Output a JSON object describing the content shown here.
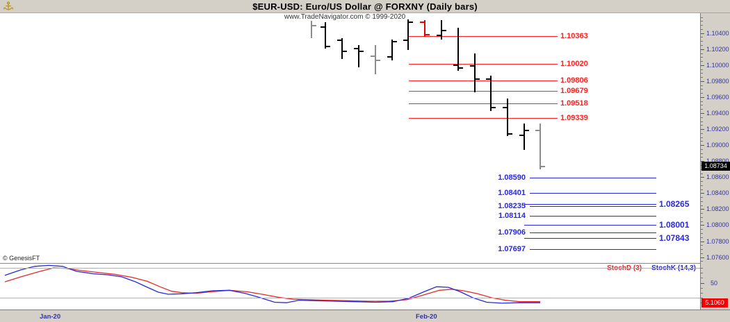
{
  "header": {
    "title": "$EUR-USD:  Euro/US Dollar @ FORXNY  (Daily bars)",
    "subtitle": "www.TradeNavigator.com © 1999-2020",
    "logo_icon": "anchor-icon"
  },
  "watermark": "© GenesisFT",
  "colors": {
    "background": "#d4d0c8",
    "panel": "#ffffff",
    "resistance": "#ff2020",
    "support": "#2828e0",
    "axis_text": "#333399",
    "bar_black": "#000000",
    "bar_gray": "#8c8c8c",
    "bar_red": "#e80000",
    "stoch_d": "#e62828",
    "stoch_k": "#2828e0",
    "gridline": "#b0b0b0",
    "last_price_box_bg": "#000000",
    "stoch_box_bg": "#f40000"
  },
  "footer": {
    "x_labels": [
      {
        "text": "Jan-20",
        "x": 57
      },
      {
        "text": "Feb-20",
        "x": 598
      }
    ]
  },
  "chart_data": [
    {
      "type": "ohlc-bar",
      "title": "$EUR-USD: Euro/US Dollar @ FORXNY (Daily bars)",
      "xlabel": "",
      "ylabel": "",
      "legend_position": "none",
      "grid": false,
      "y_axis": {
        "side": "right",
        "min": 1.07527,
        "max": 1.10649,
        "tick_labels": [
          "1.10400",
          "1.10200",
          "1.10000",
          "1.09800",
          "1.09600",
          "1.09400",
          "1.09200",
          "1.09000",
          "1.08800",
          "1.08600",
          "1.08400",
          "1.08200",
          "1.08000",
          "1.07800",
          "1.07600"
        ],
        "minor_step": 0.0005
      },
      "x_axis": {
        "labels": [
          "Jan-20",
          "Feb-20"
        ]
      },
      "last_price_label": "1.08734",
      "bars": [
        {
          "x": 448,
          "color": "gray",
          "high": 1.10555,
          "low": 1.1034,
          "open": null,
          "close": 1.10495
        },
        {
          "x": 468,
          "color": "black",
          "high": 1.10537,
          "low": 1.10211,
          "open": 1.10477,
          "close": 1.10237
        },
        {
          "x": 492,
          "color": "black",
          "high": 1.1034,
          "low": 1.10083,
          "open": 1.10314,
          "close": 1.1017
        },
        {
          "x": 516,
          "color": "black",
          "high": 1.10254,
          "low": 1.0998,
          "open": 1.10211,
          "close": 1.1017
        },
        {
          "x": 540,
          "color": "gray",
          "high": 1.10254,
          "low": 1.0989,
          "open": 1.1011,
          "close": 1.1006
        },
        {
          "x": 564,
          "color": "black",
          "high": 1.10323,
          "low": 1.10066,
          "open": 1.101,
          "close": 1.10297
        },
        {
          "x": 587,
          "color": "black",
          "high": 1.10571,
          "low": 1.10186,
          "open": 1.10314,
          "close": 1.10537
        },
        {
          "x": 611,
          "color": "red",
          "high": 1.10563,
          "low": 1.10357,
          "open": 1.1054,
          "close": 1.1038
        },
        {
          "x": 635,
          "color": "black",
          "high": 1.10563,
          "low": 1.10323,
          "open": 1.1037,
          "close": 1.10434
        },
        {
          "x": 659,
          "color": "black",
          "high": 1.10469,
          "low": 1.09929,
          "open": 1.09997,
          "close": 1.09963
        },
        {
          "x": 683,
          "color": "black",
          "high": 1.10143,
          "low": 1.09654,
          "open": 1.09988,
          "close": 1.09826
        },
        {
          "x": 706,
          "color": "black",
          "high": 1.09869,
          "low": 1.09423,
          "open": 1.09826,
          "close": 1.09466
        },
        {
          "x": 730,
          "color": "black",
          "high": 1.09586,
          "low": 1.09114,
          "open": 1.09466,
          "close": 1.0914
        },
        {
          "x": 754,
          "color": "black",
          "high": 1.09269,
          "low": 1.08943,
          "open": 1.09123,
          "close": 1.09183
        },
        {
          "x": 777,
          "color": "gray",
          "high": 1.09269,
          "low": 1.08694,
          "open": 1.09183,
          "close": 1.08734
        }
      ],
      "resistance_lines": {
        "color_key": "resistance",
        "labels": [
          "1.10363",
          "1.10020",
          "1.09806",
          "1.09679",
          "1.09518",
          "1.09339"
        ],
        "x_start": 588,
        "x_end": 802,
        "label_x": 806
      },
      "support_lines": {
        "color_key": "support",
        "left_labeled": {
          "labels": [
            "1.08590",
            "1.08401",
            "1.08235",
            "1.08114",
            "1.07906",
            "1.07697"
          ],
          "x_start": 762,
          "x_end": 944
        },
        "right_labeled": {
          "labels": [
            "1.08265",
            "1.08001",
            "1.07843"
          ],
          "x_start": 754,
          "x_end": 944,
          "label_x": 948
        }
      }
    },
    {
      "type": "line",
      "title": "Stochastics",
      "y_axis": {
        "min": 0,
        "max": 100,
        "gridlines": [
          80,
          20
        ],
        "tick_labels": [
          "50"
        ],
        "minor_ticks": [
          80,
          70,
          60,
          40,
          30,
          20,
          10
        ]
      },
      "last_value_label": "5.1060",
      "series": [
        {
          "name": "StochD (3)",
          "color_key": "stoch_d",
          "points": [
            [
              7,
              52
            ],
            [
              30,
              62
            ],
            [
              55,
              72
            ],
            [
              77,
              80
            ],
            [
              95,
              79
            ],
            [
              115,
              75
            ],
            [
              140,
              71
            ],
            [
              165,
              67
            ],
            [
              190,
              61
            ],
            [
              212,
              53
            ],
            [
              230,
              42
            ],
            [
              247,
              33
            ],
            [
              262,
              30
            ],
            [
              282,
              29
            ],
            [
              305,
              32
            ],
            [
              330,
              35
            ],
            [
              355,
              32
            ],
            [
              377,
              27
            ],
            [
              400,
              21
            ],
            [
              422,
              17
            ],
            [
              447,
              16
            ],
            [
              472,
              15
            ],
            [
              500,
              14
            ],
            [
              530,
              13
            ],
            [
              560,
              13
            ],
            [
              585,
              16
            ],
            [
              608,
              25
            ],
            [
              632,
              35
            ],
            [
              650,
              37
            ],
            [
              667,
              34
            ],
            [
              687,
              28
            ],
            [
              707,
              20
            ],
            [
              727,
              15
            ],
            [
              747,
              12
            ],
            [
              777,
              12
            ]
          ]
        },
        {
          "name": "StochK (14,3)",
          "color_key": "stoch_k",
          "points": [
            [
              7,
              65
            ],
            [
              30,
              76
            ],
            [
              50,
              83
            ],
            [
              70,
              85
            ],
            [
              90,
              83
            ],
            [
              110,
              73
            ],
            [
              135,
              68
            ],
            [
              155,
              66
            ],
            [
              175,
              62
            ],
            [
              195,
              52
            ],
            [
              212,
              41
            ],
            [
              228,
              31
            ],
            [
              242,
              27
            ],
            [
              262,
              28
            ],
            [
              282,
              30
            ],
            [
              305,
              34
            ],
            [
              330,
              35
            ],
            [
              352,
              29
            ],
            [
              372,
              21
            ],
            [
              395,
              11
            ],
            [
              412,
              10
            ],
            [
              430,
              15
            ],
            [
              455,
              14
            ],
            [
              480,
              13
            ],
            [
              510,
              12
            ],
            [
              540,
              11
            ],
            [
              565,
              12
            ],
            [
              588,
              19
            ],
            [
              610,
              32
            ],
            [
              628,
              42
            ],
            [
              645,
              41
            ],
            [
              662,
              32
            ],
            [
              680,
              20
            ],
            [
              700,
              11
            ],
            [
              722,
              9
            ],
            [
              745,
              10
            ],
            [
              777,
              10
            ]
          ]
        }
      ]
    }
  ]
}
